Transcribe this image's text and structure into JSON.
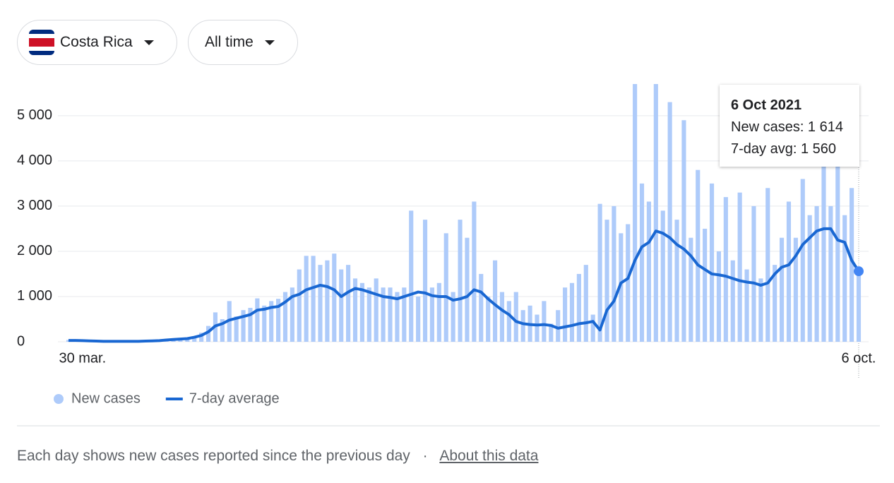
{
  "header": {
    "country": "Costa Rica",
    "period": "All time"
  },
  "chart_data": {
    "type": "bar",
    "categories": [
      null,
      null,
      "30 mar.",
      null,
      null,
      null,
      null,
      null,
      null,
      null,
      null,
      null,
      null,
      null,
      null,
      null,
      null,
      null,
      null,
      null,
      null,
      null,
      null,
      null,
      null,
      null,
      null,
      null,
      null,
      null,
      null,
      null,
      null,
      null,
      null,
      null,
      null,
      null,
      null,
      null,
      null,
      null,
      null,
      null,
      null,
      null,
      null,
      null,
      null,
      null,
      null,
      null,
      null,
      null,
      null,
      null,
      null,
      null,
      null,
      null,
      null,
      null,
      null,
      null,
      null,
      null,
      null,
      null,
      null,
      null,
      null,
      null,
      null,
      null,
      null,
      null,
      null,
      null,
      null,
      null,
      null,
      null,
      null,
      null,
      null,
      null,
      null,
      null,
      null,
      null,
      null,
      null,
      null,
      null,
      null,
      null,
      null,
      null,
      null,
      null,
      null,
      null,
      null,
      null,
      null,
      null,
      null,
      null,
      null,
      null,
      null,
      null,
      null,
      "6 oct."
    ],
    "series": [
      {
        "name": "New cases",
        "type": "bar",
        "color": "#aecbfa",
        "values": [
          40,
          30,
          20,
          20,
          10,
          10,
          10,
          10,
          10,
          10,
          10,
          20,
          20,
          30,
          40,
          50,
          70,
          80,
          120,
          200,
          350,
          650,
          500,
          900,
          560,
          700,
          750,
          960,
          800,
          900,
          950,
          1100,
          1200,
          1600,
          1900,
          1900,
          1700,
          1800,
          1950,
          1600,
          1700,
          1400,
          1300,
          1200,
          1400,
          1200,
          1200,
          1100,
          1200,
          2900,
          1000,
          2700,
          1200,
          1300,
          2400,
          1100,
          2700,
          2300,
          3100,
          1500,
          1000,
          1800,
          1100,
          900,
          1100,
          700,
          800,
          600,
          900,
          400,
          700,
          1200,
          1300,
          1500,
          1700,
          600,
          3050,
          2700,
          3000,
          2400,
          2600,
          5700,
          3500,
          3100,
          5700,
          2900,
          5300,
          2700,
          4900,
          2300,
          3800,
          2500,
          3500,
          2000,
          3200,
          1800,
          3300,
          1600,
          3000,
          1400,
          3400,
          1700,
          2300,
          3100,
          2300,
          3600,
          2800,
          3000,
          3900,
          3000,
          4400,
          2800,
          3400,
          1614
        ]
      },
      {
        "name": "7-day average",
        "type": "line",
        "color": "#1967d2",
        "values": [
          30,
          30,
          25,
          20,
          15,
          10,
          10,
          10,
          10,
          10,
          10,
          15,
          20,
          25,
          40,
          50,
          60,
          70,
          100,
          140,
          220,
          350,
          400,
          480,
          520,
          560,
          600,
          700,
          720,
          760,
          780,
          880,
          1000,
          1050,
          1150,
          1200,
          1250,
          1220,
          1150,
          1000,
          1100,
          1180,
          1150,
          1100,
          1050,
          1000,
          980,
          950,
          1000,
          1050,
          1100,
          1080,
          1020,
          1000,
          1000,
          920,
          950,
          1000,
          1150,
          1100,
          950,
          820,
          700,
          600,
          450,
          400,
          380,
          370,
          380,
          360,
          300,
          330,
          360,
          400,
          420,
          450,
          260,
          700,
          900,
          1300,
          1400,
          1800,
          2100,
          2200,
          2450,
          2400,
          2300,
          2150,
          2050,
          1900,
          1700,
          1600,
          1500,
          1480,
          1450,
          1400,
          1350,
          1320,
          1300,
          1250,
          1300,
          1500,
          1650,
          1700,
          1900,
          2150,
          2300,
          2450,
          2500,
          2500,
          2250,
          2200,
          1800,
          1560
        ]
      }
    ],
    "ylim": [
      0,
      5700
    ],
    "yticks": [
      0,
      {
        "value": 1000,
        "label": "1 000"
      },
      {
        "value": 2000,
        "label": "2 000"
      },
      {
        "value": 3000,
        "label": "3 000"
      },
      {
        "value": 4000,
        "label": "4 000"
      },
      {
        "value": 5000,
        "label": "5 000"
      }
    ],
    "grid": true,
    "tooltip": {
      "title": "6 Oct 2021",
      "lines": [
        "New cases: 1 614",
        "7-day avg: 1 560"
      ]
    }
  },
  "footer": {
    "note": "Each day shows new cases reported since the previous day",
    "separator": "·",
    "link": "About this data"
  }
}
